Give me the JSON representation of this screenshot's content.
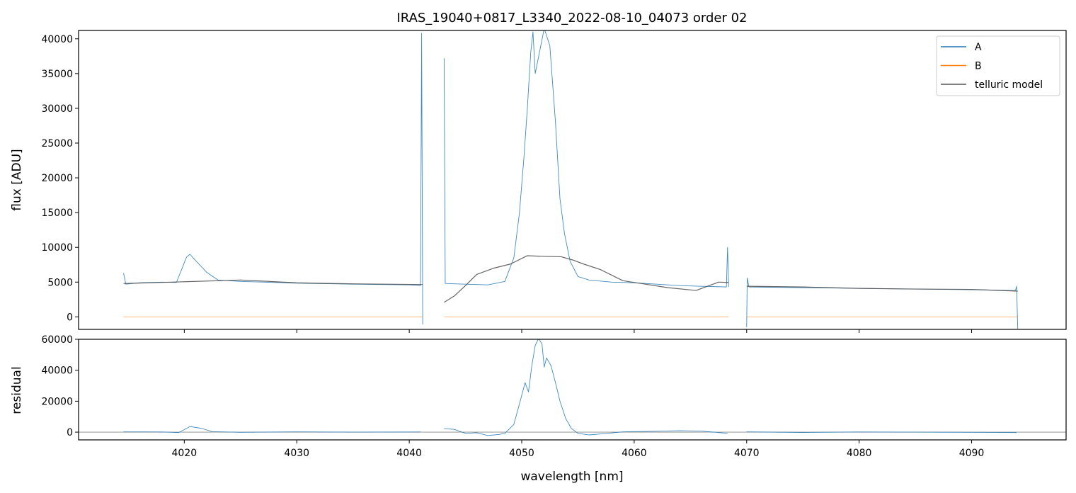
{
  "chart_data": [
    {
      "type": "line",
      "panel": "flux",
      "title": "IRAS_19040+0817_L3340_2022-08-10_04073  order 02",
      "xlabel": "",
      "ylabel": "flux [ADU]",
      "xlim": [
        4010.6,
        4098.4
      ],
      "ylim": [
        -1800,
        41200
      ],
      "yticks": [
        0,
        5000,
        10000,
        15000,
        20000,
        25000,
        30000,
        35000,
        40000
      ],
      "yticklabels": [
        "0",
        "5000",
        "10000",
        "15000",
        "20000",
        "25000",
        "30000",
        "35000",
        "40000"
      ],
      "xticks": [
        4020,
        4030,
        4040,
        4050,
        4060,
        4070,
        4080,
        4090
      ],
      "grid": false,
      "legend_position": "upper-right",
      "legend": [
        "A",
        "B",
        "telluric model"
      ],
      "segments": [
        {
          "start": 4014.6,
          "end": 4041.2
        },
        {
          "start": 4043.1,
          "end": 4068.4
        },
        {
          "start": 4070.0,
          "end": 4094.1
        }
      ],
      "series": [
        {
          "name": "A",
          "color": "#1f77b4",
          "points": [
            [
              4014.6,
              6300
            ],
            [
              4014.8,
              4700
            ],
            [
              4016,
              4900
            ],
            [
              4018,
              5000
            ],
            [
              4019.3,
              4950
            ],
            [
              4020.2,
              8600
            ],
            [
              4020.5,
              9000
            ],
            [
              4021,
              8100
            ],
            [
              4022,
              6400
            ],
            [
              4023,
              5300
            ],
            [
              4025,
              5100
            ],
            [
              4030,
              4850
            ],
            [
              4035,
              4700
            ],
            [
              4040,
              4600
            ],
            [
              4041.0,
              4500
            ],
            [
              4041.1,
              40800
            ],
            [
              4041.2,
              -1100
            ],
            [
              4043.1,
              37200
            ],
            [
              4043.2,
              4800
            ],
            [
              4045,
              4700
            ],
            [
              4047,
              4600
            ],
            [
              4048.5,
              5100
            ],
            [
              4049.3,
              8500
            ],
            [
              4049.8,
              15000
            ],
            [
              4050.2,
              23000
            ],
            [
              4050.5,
              30000
            ],
            [
              4050.8,
              38000
            ],
            [
              4051.0,
              41000
            ],
            [
              4051.2,
              35000
            ],
            [
              4052.0,
              41500
            ],
            [
              4052.5,
              39000
            ],
            [
              4053,
              28000
            ],
            [
              4053.4,
              17000
            ],
            [
              4053.8,
              12000
            ],
            [
              4054.3,
              8000
            ],
            [
              4055,
              5800
            ],
            [
              4056,
              5300
            ],
            [
              4058,
              5000
            ],
            [
              4060,
              4900
            ],
            [
              4062,
              4700
            ],
            [
              4064,
              4500
            ],
            [
              4066,
              4400
            ],
            [
              4068.2,
              4300
            ],
            [
              4068.3,
              10000
            ],
            [
              4068.4,
              4300
            ],
            [
              4070.0,
              -1500
            ],
            [
              4070.05,
              5600
            ],
            [
              4070.2,
              4300
            ],
            [
              4075,
              4200
            ],
            [
              4080,
              4100
            ],
            [
              4085,
              4000
            ],
            [
              4090,
              3900
            ],
            [
              4093.9,
              3800
            ],
            [
              4094.0,
              4400
            ],
            [
              4094.1,
              -1700
            ]
          ]
        },
        {
          "name": "B",
          "color": "#ff7f0e",
          "points": [
            [
              4014.6,
              0
            ],
            [
              4041.2,
              0
            ],
            [
              4043.1,
              0
            ],
            [
              4068.4,
              0
            ],
            [
              4070.0,
              0
            ],
            [
              4094.1,
              0
            ]
          ]
        },
        {
          "name": "telluric model",
          "color": "#555555",
          "points": [
            [
              4014.6,
              4800
            ],
            [
              4020,
              5050
            ],
            [
              4025,
              5300
            ],
            [
              4030,
              4900
            ],
            [
              4035,
              4750
            ],
            [
              4041.2,
              4650
            ],
            [
              4043.1,
              2100
            ],
            [
              4044,
              3000
            ],
            [
              4045,
              4500
            ],
            [
              4046,
              6100
            ],
            [
              4047.5,
              7000
            ],
            [
              4049,
              7600
            ],
            [
              4050.5,
              8800
            ],
            [
              4052,
              8700
            ],
            [
              4053.5,
              8650
            ],
            [
              4054.5,
              8200
            ],
            [
              4055.5,
              7600
            ],
            [
              4057,
              6800
            ],
            [
              4059,
              5200
            ],
            [
              4061,
              4700
            ],
            [
              4063,
              4200
            ],
            [
              4065.5,
              3800
            ],
            [
              4067.5,
              5000
            ],
            [
              4068.4,
              4950
            ],
            [
              4070.0,
              4400
            ],
            [
              4075,
              4300
            ],
            [
              4080,
              4100
            ],
            [
              4085,
              4000
            ],
            [
              4090,
              3950
            ],
            [
              4094.1,
              3700
            ]
          ]
        }
      ]
    },
    {
      "type": "line",
      "panel": "residual",
      "title": "",
      "xlabel": "wavelength [nm]",
      "ylabel": "residual",
      "xlim": [
        4010.6,
        4098.4
      ],
      "ylim": [
        -5000,
        60000
      ],
      "yticks": [
        0,
        20000,
        40000,
        60000
      ],
      "yticklabels": [
        "0",
        "20000",
        "40000",
        "60000"
      ],
      "xticks": [
        4020,
        4030,
        4040,
        4050,
        4060,
        4070,
        4080,
        4090
      ],
      "xticklabels": [
        "4020",
        "4030",
        "4040",
        "4050",
        "4060",
        "4070",
        "4080",
        "4090"
      ],
      "grid": false,
      "zero_line": true,
      "series": [
        {
          "name": "",
          "color": "#1f77b4",
          "points": [
            [
              4014.6,
              200
            ],
            [
              4018,
              100
            ],
            [
              4019.5,
              -300
            ],
            [
              4020.5,
              3600
            ],
            [
              4021.5,
              2500
            ],
            [
              4022.5,
              300
            ],
            [
              4025,
              -100
            ],
            [
              4030,
              200
            ],
            [
              4035,
              0
            ],
            [
              4041.0,
              100
            ],
            [
              4043.1,
              2300
            ],
            [
              4044,
              1800
            ],
            [
              4045,
              -800
            ],
            [
              4046,
              -400
            ],
            [
              4047,
              -2200
            ],
            [
              4048,
              -1500
            ],
            [
              4048.5,
              -800
            ],
            [
              4049.3,
              5000
            ],
            [
              4049.9,
              21000
            ],
            [
              4050.3,
              32000
            ],
            [
              4050.6,
              26000
            ],
            [
              4050.9,
              43000
            ],
            [
              4051.2,
              56000
            ],
            [
              4051.5,
              60500
            ],
            [
              4051.8,
              57000
            ],
            [
              4052.0,
              42000
            ],
            [
              4052.2,
              48000
            ],
            [
              4052.6,
              43000
            ],
            [
              4053.0,
              32000
            ],
            [
              4053.4,
              20000
            ],
            [
              4053.9,
              9000
            ],
            [
              4054.4,
              2500
            ],
            [
              4055,
              -800
            ],
            [
              4056,
              -1800
            ],
            [
              4057,
              -1200
            ],
            [
              4059,
              200
            ],
            [
              4062,
              600
            ],
            [
              4064,
              900
            ],
            [
              4066,
              700
            ],
            [
              4068.3,
              -800
            ],
            [
              4070.0,
              200
            ],
            [
              4075,
              -200
            ],
            [
              4080,
              100
            ],
            [
              4085,
              0
            ],
            [
              4090,
              -100
            ],
            [
              4094.0,
              -300
            ]
          ]
        }
      ]
    }
  ]
}
